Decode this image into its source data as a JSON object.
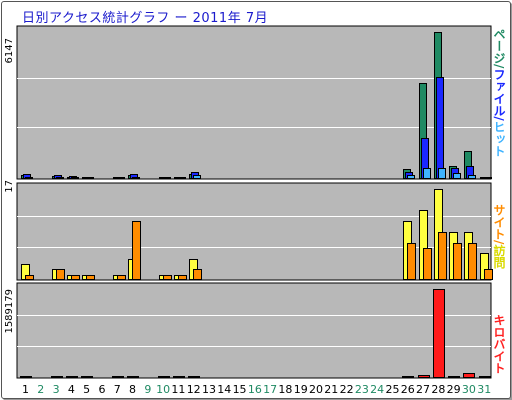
{
  "title": "日別アクセス統計グラフ ー 2011年 7月",
  "panels": [
    {
      "id": "page-file-hit",
      "ymax_label": "6147",
      "right_label": [
        {
          "text": "ページ",
          "color": "#1f8a63"
        },
        {
          "text": "/",
          "color": "#1f8a63"
        },
        {
          "text": "ファイル",
          "color": "#1a28ff"
        },
        {
          "text": "/",
          "color": "#1a28ff"
        },
        {
          "text": "ヒット",
          "color": "#3fb3ff"
        }
      ]
    },
    {
      "id": "site-hit",
      "ymax_label": "17",
      "right_label": [
        {
          "text": "サイト",
          "color": "#ff8c00"
        },
        {
          "text": "/",
          "color": "#ff8c00"
        },
        {
          "text": "訪問",
          "color": "#dada00"
        }
      ]
    },
    {
      "id": "kilobytes",
      "ymax_label": "1589179",
      "right_label": [
        {
          "text": "キロバイト",
          "color": "#ff2020"
        }
      ]
    }
  ],
  "colors": {
    "pages": "#1f8a63",
    "files": "#1a28ff",
    "hits": "#3fb3ff",
    "visits": "#ffff40",
    "sites": "#ff8c00",
    "kbytes": "#ff1a1a",
    "weekday_label": "#000000",
    "weekend_label": "#1f8a63",
    "plot_bg": "#b8b8b8"
  },
  "chart_data": [
    {
      "type": "bar",
      "categories": [
        "1",
        "2",
        "3",
        "4",
        "5",
        "6",
        "7",
        "8",
        "9",
        "10",
        "11",
        "12",
        "13",
        "14",
        "15",
        "16",
        "17",
        "18",
        "19",
        "20",
        "21",
        "22",
        "23",
        "24",
        "25",
        "26",
        "27",
        "28",
        "29",
        "30",
        "31"
      ],
      "weekend_days": [
        "2",
        "3",
        "9",
        "10",
        "16",
        "17",
        "23",
        "24",
        "30",
        "31"
      ],
      "ylim": [
        0,
        6147
      ],
      "series": [
        {
          "name": "ページ",
          "values": [
            150,
            0,
            120,
            100,
            40,
            0,
            50,
            150,
            0,
            70,
            60,
            220,
            0,
            0,
            0,
            0,
            0,
            0,
            0,
            0,
            0,
            0,
            0,
            0,
            0,
            400,
            4000,
            6147,
            550,
            1150,
            40
          ]
        },
        {
          "name": "ファイル",
          "values": [
            200,
            0,
            150,
            120,
            50,
            0,
            70,
            200,
            0,
            90,
            80,
            280,
            0,
            0,
            0,
            0,
            0,
            0,
            0,
            0,
            0,
            0,
            0,
            0,
            0,
            280,
            1700,
            4250,
            450,
            550,
            30
          ]
        },
        {
          "name": "ヒット",
          "values": [
            100,
            0,
            90,
            80,
            30,
            0,
            40,
            100,
            0,
            50,
            50,
            180,
            0,
            0,
            0,
            0,
            0,
            0,
            0,
            0,
            0,
            0,
            0,
            0,
            0,
            180,
            470,
            480,
            230,
            180,
            20
          ]
        }
      ]
    },
    {
      "type": "bar",
      "categories": [
        "1",
        "2",
        "3",
        "4",
        "5",
        "6",
        "7",
        "8",
        "9",
        "10",
        "11",
        "12",
        "13",
        "14",
        "15",
        "16",
        "17",
        "18",
        "19",
        "20",
        "21",
        "22",
        "23",
        "24",
        "25",
        "26",
        "27",
        "28",
        "29",
        "30",
        "31"
      ],
      "ylim": [
        0,
        17
      ],
      "series": [
        {
          "name": "訪問",
          "values": [
            3,
            0,
            2,
            1,
            1,
            0,
            1,
            4,
            0,
            1,
            1,
            4,
            0,
            0,
            0,
            0,
            0,
            0,
            0,
            0,
            0,
            0,
            0,
            0,
            0,
            11,
            13,
            17,
            9,
            9,
            5
          ]
        },
        {
          "name": "サイト",
          "values": [
            1,
            0,
            2,
            1,
            1,
            0,
            1,
            11,
            0,
            1,
            1,
            2,
            0,
            0,
            0,
            0,
            0,
            0,
            0,
            0,
            0,
            0,
            0,
            0,
            0,
            7,
            6,
            9,
            7,
            7,
            2
          ]
        }
      ]
    },
    {
      "type": "bar",
      "categories": [
        "1",
        "2",
        "3",
        "4",
        "5",
        "6",
        "7",
        "8",
        "9",
        "10",
        "11",
        "12",
        "13",
        "14",
        "15",
        "16",
        "17",
        "18",
        "19",
        "20",
        "21",
        "22",
        "23",
        "24",
        "25",
        "26",
        "27",
        "28",
        "29",
        "30",
        "31"
      ],
      "ylim": [
        0,
        1589179
      ],
      "series": [
        {
          "name": "キロバイト",
          "values": [
            5000,
            0,
            5000,
            5000,
            5000,
            0,
            5000,
            5000,
            0,
            5000,
            5000,
            5000,
            0,
            0,
            0,
            0,
            0,
            0,
            0,
            0,
            0,
            0,
            0,
            0,
            0,
            12000,
            45000,
            1589179,
            28000,
            85000,
            12000
          ]
        }
      ]
    }
  ]
}
